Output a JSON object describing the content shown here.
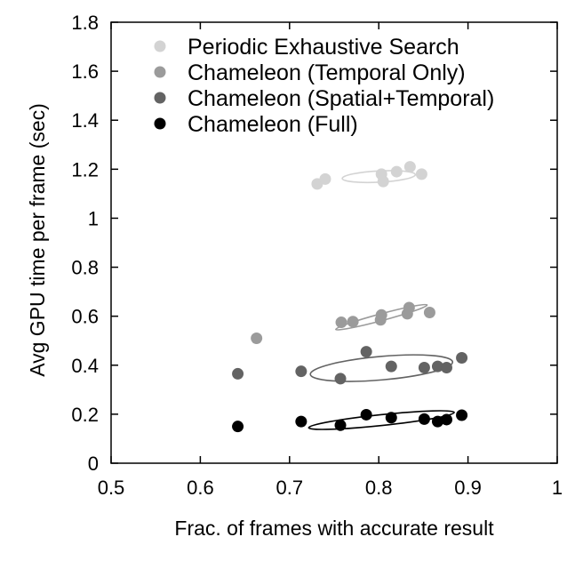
{
  "chart_data": {
    "type": "scatter",
    "title": "",
    "xlabel": "Frac. of frames with accurate result",
    "ylabel": "Avg GPU time per frame (sec)",
    "xlim": [
      0.5,
      1.0
    ],
    "ylim": [
      0,
      1.8
    ],
    "xticks": [
      0.5,
      0.6,
      0.7,
      0.8,
      0.9,
      1
    ],
    "xtick_labels": [
      "0.5",
      "0.6",
      "0.7",
      "0.8",
      "0.9",
      "1"
    ],
    "yticks": [
      0,
      0.2,
      0.4,
      0.6,
      0.8,
      1,
      1.2,
      1.4,
      1.6,
      1.8
    ],
    "ytick_labels": [
      "0",
      "0.2",
      "0.4",
      "0.6",
      "0.8",
      "1",
      "1.2",
      "1.4",
      "1.6",
      "1.8"
    ],
    "grid": false,
    "legend_position": "top-right",
    "series": [
      {
        "name": "Periodic Exhaustive Search",
        "color": "#d3d3d3",
        "points": [
          [
            0.731,
            1.14
          ],
          [
            0.74,
            1.16
          ],
          [
            0.803,
            1.18
          ],
          [
            0.805,
            1.15
          ],
          [
            0.82,
            1.19
          ],
          [
            0.835,
            1.21
          ],
          [
            0.848,
            1.18
          ]
        ],
        "ellipse": {
          "cx": 0.8,
          "cy": 1.17,
          "rx": 0.041,
          "ry": 0.023,
          "angle": -3
        }
      },
      {
        "name": "Chameleon (Temporal Only)",
        "color": "#9b9b9b",
        "points": [
          [
            0.663,
            0.51
          ],
          [
            0.758,
            0.575
          ],
          [
            0.771,
            0.578
          ],
          [
            0.802,
            0.585
          ],
          [
            0.803,
            0.605
          ],
          [
            0.832,
            0.61
          ],
          [
            0.834,
            0.635
          ],
          [
            0.857,
            0.615
          ]
        ],
        "ellipse": {
          "cx": 0.803,
          "cy": 0.596,
          "rx": 0.053,
          "ry": 0.014,
          "angle": -15
        }
      },
      {
        "name": "Chameleon (Spatial+Temporal)",
        "color": "#636363",
        "points": [
          [
            0.642,
            0.365
          ],
          [
            0.713,
            0.375
          ],
          [
            0.757,
            0.345
          ],
          [
            0.786,
            0.455
          ],
          [
            0.814,
            0.395
          ],
          [
            0.851,
            0.39
          ],
          [
            0.866,
            0.395
          ],
          [
            0.876,
            0.39
          ],
          [
            0.893,
            0.43
          ]
        ],
        "ellipse": {
          "cx": 0.803,
          "cy": 0.388,
          "rx": 0.08,
          "ry": 0.048,
          "angle": -5
        }
      },
      {
        "name": "Chameleon (Full)",
        "color": "#000000",
        "points": [
          [
            0.642,
            0.15
          ],
          [
            0.713,
            0.17
          ],
          [
            0.757,
            0.155
          ],
          [
            0.786,
            0.198
          ],
          [
            0.814,
            0.186
          ],
          [
            0.851,
            0.18
          ],
          [
            0.866,
            0.17
          ],
          [
            0.876,
            0.178
          ],
          [
            0.893,
            0.196
          ]
        ],
        "ellipse": {
          "cx": 0.803,
          "cy": 0.176,
          "rx": 0.082,
          "ry": 0.022,
          "angle": -6
        }
      }
    ]
  }
}
